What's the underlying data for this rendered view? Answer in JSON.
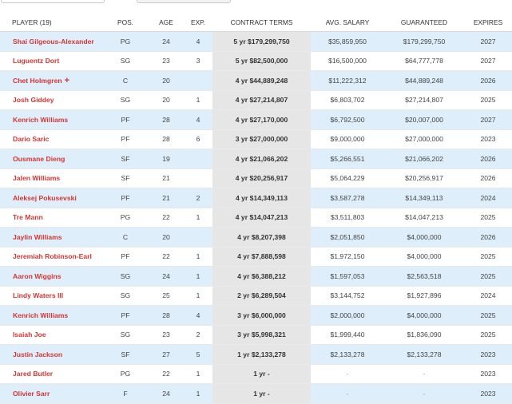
{
  "table": {
    "headers": {
      "player": "PLAYER (19)",
      "pos": "POS.",
      "age": "AGE",
      "exp": "EXP.",
      "terms": "CONTRACT TERMS",
      "avg": "AVG. SALARY",
      "guaranteed": "GUARANTEED",
      "expires": "EXPIRES"
    },
    "rows": [
      {
        "player": "Shai Gilgeous-Alexander",
        "pos": "PG",
        "age": "24",
        "exp": "4",
        "terms": "5 yr $179,299,750",
        "avg": "$35,859,950",
        "guaranteed": "$179,299,750",
        "expires": "2027"
      },
      {
        "player": "Luguentz Dort",
        "pos": "SG",
        "age": "23",
        "exp": "3",
        "terms": "5 yr $82,500,000",
        "avg": "$16,500,000",
        "guaranteed": "$64,777,778",
        "expires": "2027"
      },
      {
        "player": "Chet Holmgren",
        "pos": "C",
        "age": "20",
        "exp": "",
        "terms": "4 yr $44,889,248",
        "avg": "$11,222,312",
        "guaranteed": "$44,889,248",
        "expires": "2026",
        "badge": "+"
      },
      {
        "player": "Josh Giddey",
        "pos": "SG",
        "age": "20",
        "exp": "1",
        "terms": "4 yr $27,214,807",
        "avg": "$6,803,702",
        "guaranteed": "$27,214,807",
        "expires": "2025"
      },
      {
        "player": "Kenrich Williams",
        "pos": "PF",
        "age": "28",
        "exp": "4",
        "terms": "4 yr $27,170,000",
        "avg": "$6,792,500",
        "guaranteed": "$20,007,000",
        "expires": "2027"
      },
      {
        "player": "Dario Saric",
        "pos": "PF",
        "age": "28",
        "exp": "6",
        "terms": "3 yr $27,000,000",
        "avg": "$9,000,000",
        "guaranteed": "$27,000,000",
        "expires": "2023"
      },
      {
        "player": "Ousmane Dieng",
        "pos": "SF",
        "age": "19",
        "exp": "",
        "terms": "4 yr $21,066,202",
        "avg": "$5,266,551",
        "guaranteed": "$21,066,202",
        "expires": "2026"
      },
      {
        "player": "Jalen Williams",
        "pos": "SF",
        "age": "21",
        "exp": "",
        "terms": "4 yr $20,256,917",
        "avg": "$5,064,229",
        "guaranteed": "$20,256,917",
        "expires": "2026"
      },
      {
        "player": "Aleksej Pokusevski",
        "pos": "PF",
        "age": "21",
        "exp": "2",
        "terms": "4 yr $14,349,113",
        "avg": "$3,587,278",
        "guaranteed": "$14,349,113",
        "expires": "2024"
      },
      {
        "player": "Tre Mann",
        "pos": "PG",
        "age": "22",
        "exp": "1",
        "terms": "4 yr $14,047,213",
        "avg": "$3,511,803",
        "guaranteed": "$14,047,213",
        "expires": "2025"
      },
      {
        "player": "Jaylin Williams",
        "pos": "C",
        "age": "20",
        "exp": "",
        "terms": "4 yr $8,207,398",
        "avg": "$2,051,850",
        "guaranteed": "$4,000,000",
        "expires": "2026"
      },
      {
        "player": "Jeremiah Robinson-Earl",
        "pos": "PF",
        "age": "22",
        "exp": "1",
        "terms": "4 yr $7,888,598",
        "avg": "$1,972,150",
        "guaranteed": "$4,000,000",
        "expires": "2025"
      },
      {
        "player": "Aaron Wiggins",
        "pos": "SG",
        "age": "24",
        "exp": "1",
        "terms": "4 yr $6,388,212",
        "avg": "$1,597,053",
        "guaranteed": "$2,563,518",
        "expires": "2025"
      },
      {
        "player": "Lindy Waters III",
        "pos": "SG",
        "age": "25",
        "exp": "1",
        "terms": "2 yr $6,289,504",
        "avg": "$3,144,752",
        "guaranteed": "$1,927,896",
        "expires": "2024"
      },
      {
        "player": "Kenrich Williams",
        "pos": "PF",
        "age": "28",
        "exp": "4",
        "terms": "3 yr $6,000,000",
        "avg": "$2,000,000",
        "guaranteed": "$4,000,000",
        "expires": "2025"
      },
      {
        "player": "Isaiah Joe",
        "pos": "SG",
        "age": "23",
        "exp": "2",
        "terms": "3 yr $5,998,321",
        "avg": "$1,999,440",
        "guaranteed": "$1,836,090",
        "expires": "2025"
      },
      {
        "player": "Justin Jackson",
        "pos": "SF",
        "age": "27",
        "exp": "5",
        "terms": "1 yr $2,133,278",
        "avg": "$2,133,278",
        "guaranteed": "$2,133,278",
        "expires": "2023"
      },
      {
        "player": "Jared Butler",
        "pos": "PG",
        "age": "22",
        "exp": "1",
        "terms": "1 yr -",
        "avg": "-",
        "guaranteed": "-",
        "expires": "2023"
      },
      {
        "player": "Olivier Sarr",
        "pos": "F",
        "age": "24",
        "exp": "1",
        "terms": "1 yr -",
        "avg": "-",
        "guaranteed": "-",
        "expires": "2023"
      }
    ]
  }
}
